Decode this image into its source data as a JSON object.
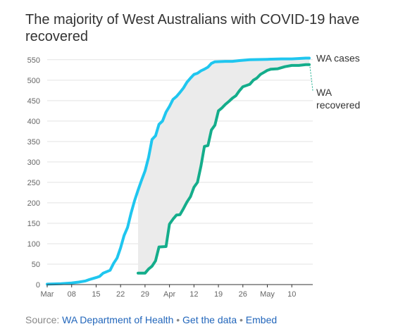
{
  "title": "The majority of West Australians with COVID-19 have recovered",
  "footer": {
    "source_prefix": "Source:",
    "source_link": "WA Department of Health",
    "separator": "•",
    "data_link": "Get the data",
    "embed_link": "Embed"
  },
  "colors": {
    "cases": "#1fc6ef",
    "recovered": "#14ad8b",
    "gap_fill": "#ebebeb",
    "grid": "#e3e3e3",
    "axis": "#333333",
    "tick_text": "#666666",
    "label_text": "#333333"
  },
  "chart_data": {
    "type": "line",
    "title": "The majority of West Australians with COVID-19 have recovered",
    "xlabel": "",
    "ylabel": "",
    "x_ticks": [
      "Mar",
      "08",
      "15",
      "22",
      "29",
      "Apr",
      "12",
      "19",
      "26",
      "May",
      "10"
    ],
    "x_range": [
      "2020-03-01",
      "2020-05-16"
    ],
    "ylim": [
      0,
      560
    ],
    "y_ticks": [
      0,
      50,
      100,
      150,
      200,
      250,
      300,
      350,
      400,
      450,
      500,
      550
    ],
    "grid": "horizontal",
    "shaded_area": "between WA cases and WA recovered",
    "series": [
      {
        "name": "WA cases",
        "points": [
          [
            "2020-03-01",
            1
          ],
          [
            "2020-03-05",
            2
          ],
          [
            "2020-03-08",
            4
          ],
          [
            "2020-03-10",
            6
          ],
          [
            "2020-03-12",
            9
          ],
          [
            "2020-03-13",
            12
          ],
          [
            "2020-03-15",
            17
          ],
          [
            "2020-03-16",
            20
          ],
          [
            "2020-03-17",
            28
          ],
          [
            "2020-03-19",
            35
          ],
          [
            "2020-03-20",
            52
          ],
          [
            "2020-03-21",
            65
          ],
          [
            "2020-03-22",
            90
          ],
          [
            "2020-03-23",
            120
          ],
          [
            "2020-03-24",
            140
          ],
          [
            "2020-03-25",
            175
          ],
          [
            "2020-03-26",
            205
          ],
          [
            "2020-03-27",
            231
          ],
          [
            "2020-03-28",
            255
          ],
          [
            "2020-03-29",
            278
          ],
          [
            "2020-03-30",
            311
          ],
          [
            "2020-03-31",
            355
          ],
          [
            "2020-04-01",
            364
          ],
          [
            "2020-04-02",
            392
          ],
          [
            "2020-04-03",
            400
          ],
          [
            "2020-04-04",
            422
          ],
          [
            "2020-04-05",
            436
          ],
          [
            "2020-04-06",
            453
          ],
          [
            "2020-04-07",
            460
          ],
          [
            "2020-04-08",
            470
          ],
          [
            "2020-04-09",
            481
          ],
          [
            "2020-04-10",
            495
          ],
          [
            "2020-04-11",
            505
          ],
          [
            "2020-04-12",
            514
          ],
          [
            "2020-04-13",
            517
          ],
          [
            "2020-04-14",
            523
          ],
          [
            "2020-04-15",
            527
          ],
          [
            "2020-04-16",
            532
          ],
          [
            "2020-04-17",
            541
          ],
          [
            "2020-04-18",
            545
          ],
          [
            "2020-04-21",
            546
          ],
          [
            "2020-04-23",
            546
          ],
          [
            "2020-04-25",
            548
          ],
          [
            "2020-04-28",
            550
          ],
          [
            "2020-05-03",
            551
          ],
          [
            "2020-05-07",
            552
          ],
          [
            "2020-05-10",
            552
          ],
          [
            "2020-05-14",
            554
          ],
          [
            "2020-05-15",
            554
          ]
        ]
      },
      {
        "name": "WA recovered",
        "points": [
          [
            "2020-03-27",
            28
          ],
          [
            "2020-03-29",
            28
          ],
          [
            "2020-03-30",
            38
          ],
          [
            "2020-03-31",
            45
          ],
          [
            "2020-04-01",
            58
          ],
          [
            "2020-04-02",
            92
          ],
          [
            "2020-04-04",
            93
          ],
          [
            "2020-04-05",
            148
          ],
          [
            "2020-04-06",
            160
          ],
          [
            "2020-04-07",
            170
          ],
          [
            "2020-04-08",
            171
          ],
          [
            "2020-04-09",
            186
          ],
          [
            "2020-04-10",
            202
          ],
          [
            "2020-04-11",
            215
          ],
          [
            "2020-04-12",
            238
          ],
          [
            "2020-04-13",
            250
          ],
          [
            "2020-04-14",
            290
          ],
          [
            "2020-04-15",
            338
          ],
          [
            "2020-04-16",
            340
          ],
          [
            "2020-04-17",
            378
          ],
          [
            "2020-04-18",
            390
          ],
          [
            "2020-04-19",
            425
          ],
          [
            "2020-04-20",
            432
          ],
          [
            "2020-04-21",
            441
          ],
          [
            "2020-04-22",
            448
          ],
          [
            "2020-04-23",
            456
          ],
          [
            "2020-04-24",
            462
          ],
          [
            "2020-04-25",
            474
          ],
          [
            "2020-04-26",
            484
          ],
          [
            "2020-04-27",
            487
          ],
          [
            "2020-04-28",
            490
          ],
          [
            "2020-04-29",
            500
          ],
          [
            "2020-04-30",
            505
          ],
          [
            "2020-05-01",
            514
          ],
          [
            "2020-05-02",
            519
          ],
          [
            "2020-05-03",
            524
          ],
          [
            "2020-05-04",
            527
          ],
          [
            "2020-05-06",
            528
          ],
          [
            "2020-05-08",
            533
          ],
          [
            "2020-05-10",
            536
          ],
          [
            "2020-05-12",
            536
          ],
          [
            "2020-05-14",
            538
          ],
          [
            "2020-05-15",
            538
          ]
        ]
      }
    ],
    "series_labels": [
      {
        "series": "WA cases",
        "lines": [
          "WA cases"
        ]
      },
      {
        "series": "WA recovered",
        "lines": [
          "WA",
          "recovered"
        ]
      }
    ]
  }
}
